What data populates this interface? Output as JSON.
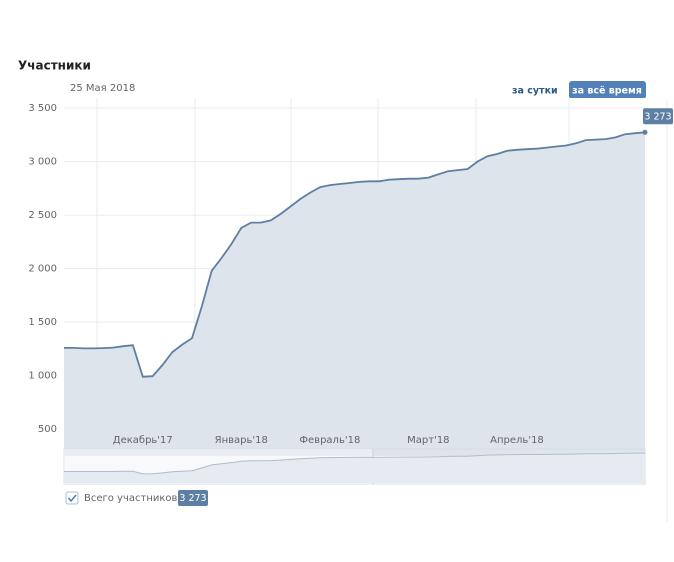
{
  "chart_data": {
    "type": "area",
    "title": "Участники",
    "subtitle": "25 Мая 2018",
    "buttons": [
      "за сутки",
      "за всё время"
    ],
    "categories": [
      null,
      null,
      null,
      null,
      null,
      null,
      null,
      null,
      "Декабрь'17",
      null,
      null,
      null,
      null,
      null,
      null,
      null,
      null,
      null,
      "Январь'18",
      null,
      null,
      null,
      null,
      null,
      null,
      null,
      null,
      "Февраль'18",
      null,
      null,
      null,
      null,
      null,
      null,
      null,
      null,
      null,
      "Март'18",
      null,
      null,
      null,
      null,
      null,
      null,
      null,
      null,
      "Апрель'18",
      null,
      null,
      null,
      null,
      null,
      null,
      null,
      null,
      null,
      null,
      null,
      null,
      null
    ],
    "series": [
      {
        "name": "Всего участников",
        "color": "#5d7fa3",
        "values": [
          1260,
          1260,
          1255,
          1255,
          1258,
          1262,
          1275,
          1285,
          990,
          995,
          1100,
          1220,
          1290,
          1350,
          1650,
          1980,
          2100,
          2230,
          2380,
          2430,
          2430,
          2450,
          2510,
          2580,
          2650,
          2710,
          2760,
          2780,
          2790,
          2800,
          2810,
          2815,
          2815,
          2830,
          2835,
          2840,
          2840,
          2850,
          2880,
          2910,
          2920,
          2930,
          3000,
          3050,
          3070,
          3100,
          3110,
          3115,
          3120,
          3130,
          3140,
          3150,
          3170,
          3200,
          3205,
          3210,
          3225,
          3255,
          3265,
          3273
        ],
        "value_labels": [
          null,
          null,
          null,
          null,
          null,
          null,
          null,
          null,
          null,
          null,
          null,
          null,
          null,
          null,
          null,
          null,
          null,
          null,
          null,
          null,
          null,
          null,
          null,
          null,
          null,
          null,
          null,
          null,
          null,
          null,
          null,
          null,
          null,
          null,
          null,
          null,
          null,
          null,
          null,
          null,
          null,
          null,
          null,
          null,
          null,
          null,
          null,
          null,
          null,
          null,
          null,
          null,
          null,
          null,
          null,
          null,
          null,
          null,
          null,
          "3 273"
        ]
      }
    ],
    "ylim": [
      250,
      3500
    ],
    "yticks": [
      500,
      {
        "value": 1000,
        "label": "1 000"
      },
      {
        "value": 1500,
        "label": "1 500"
      },
      {
        "value": 2000,
        "label": "2 000"
      },
      {
        "value": 2500,
        "label": "2 500"
      },
      {
        "value": 3000,
        "label": "3 000"
      },
      {
        "value": 3500,
        "label": "3 500"
      }
    ],
    "grid": true
  }
}
